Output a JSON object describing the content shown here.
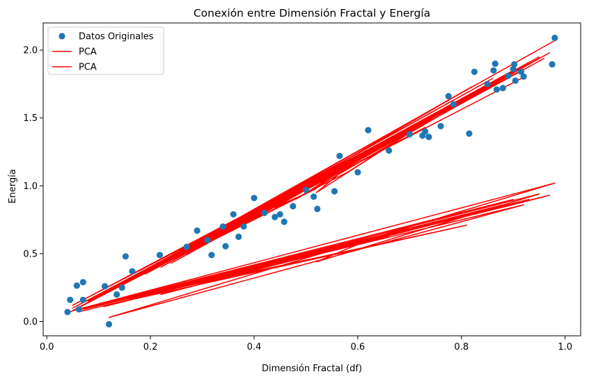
{
  "chart_data": {
    "type": "scatter",
    "title": "Conexión entre Dimensión Fractal y Energía",
    "xlabel": "Dimensión Fractal (df)",
    "ylabel": "Energía",
    "xlim": [
      -0.007,
      1.03
    ],
    "ylim": [
      -0.105,
      2.2
    ],
    "xticks": [
      "0.0",
      "0.2",
      "0.4",
      "0.6",
      "0.8",
      "1.0"
    ],
    "yticks": [
      "0.0",
      "0.5",
      "1.0",
      "1.5",
      "2.0"
    ],
    "grid": false,
    "legend_position": "top-left",
    "legend": [
      "Datos Originales",
      "PCA",
      "PCA"
    ],
    "colors": {
      "points": "#1f77b4",
      "pca": "#ff0000"
    },
    "series": [
      {
        "name": "Datos Originales",
        "kind": "scatter",
        "x": [
          0.04,
          0.045,
          0.058,
          0.062,
          0.07,
          0.07,
          0.112,
          0.12,
          0.135,
          0.145,
          0.152,
          0.165,
          0.218,
          0.27,
          0.29,
          0.31,
          0.318,
          0.34,
          0.345,
          0.36,
          0.37,
          0.38,
          0.4,
          0.42,
          0.44,
          0.45,
          0.458,
          0.475,
          0.5,
          0.515,
          0.522,
          0.555,
          0.565,
          0.6,
          0.62,
          0.66,
          0.7,
          0.725,
          0.73,
          0.737,
          0.76,
          0.775,
          0.785,
          0.815,
          0.825,
          0.85,
          0.862,
          0.865,
          0.868,
          0.88,
          0.89,
          0.9,
          0.902,
          0.904,
          0.915,
          0.92,
          0.975,
          0.98
        ],
        "y": [
          0.07,
          0.16,
          0.265,
          0.09,
          0.29,
          0.16,
          0.26,
          -0.02,
          0.2,
          0.25,
          0.48,
          0.37,
          0.49,
          0.55,
          0.67,
          0.6,
          0.49,
          0.7,
          0.555,
          0.79,
          0.625,
          0.7,
          0.91,
          0.8,
          0.77,
          0.79,
          0.735,
          0.85,
          0.97,
          0.92,
          0.83,
          0.96,
          1.22,
          1.1,
          1.41,
          1.26,
          1.38,
          1.37,
          1.4,
          1.36,
          1.44,
          1.66,
          1.6,
          1.385,
          1.84,
          1.75,
          1.85,
          1.9,
          1.71,
          1.72,
          1.81,
          1.86,
          1.895,
          1.775,
          1.84,
          1.805,
          1.895,
          2.09
        ]
      },
      {
        "name": "PCA",
        "kind": "line",
        "x": [
          0.04,
          0.92,
          0.07,
          0.98,
          0.06,
          0.86,
          0.12,
          0.9,
          0.05,
          0.73,
          0.15,
          0.82,
          0.22,
          0.9,
          0.05,
          0.62,
          0.29,
          0.95,
          0.11,
          0.76,
          0.37,
          0.88,
          0.16,
          0.7,
          0.05,
          0.56,
          0.24,
          0.97,
          0.08,
          0.66,
          0.44,
          0.52,
          0.3,
          0.85,
          0.12,
          0.6,
          0.52,
          0.81,
          0.58,
          0.33,
          0.9,
          0.2,
          0.78,
          0.4,
          0.92,
          0.13,
          0.7,
          0.27,
          0.83,
          0.1,
          0.66,
          0.48,
          0.93,
          0.19,
          0.62,
          0.35,
          0.88,
          0.07,
          0.5,
          0.74,
          0.28,
          0.96
        ],
        "y": [
          0.06,
          1.8,
          0.12,
          2.07,
          0.1,
          1.79,
          0.22,
          1.85,
          0.08,
          1.43,
          0.28,
          1.73,
          0.4,
          1.83,
          0.12,
          1.25,
          0.55,
          1.95,
          0.2,
          1.55,
          0.72,
          1.8,
          0.3,
          1.4,
          0.1,
          1.1,
          0.43,
          1.98,
          0.15,
          1.32,
          0.84,
          0.98,
          0.56,
          1.73,
          0.24,
          1.2,
          0.95,
          1.66,
          1.1,
          0.62,
          1.84,
          0.38,
          1.58,
          0.76,
          1.86,
          0.24,
          1.42,
          0.5,
          1.7,
          0.18,
          1.33,
          0.9,
          1.9,
          0.35,
          1.25,
          0.66,
          1.79,
          0.12,
          0.99,
          1.48,
          0.52,
          1.94
        ]
      },
      {
        "name": "PCA",
        "kind": "line",
        "x": [
          0.06,
          0.92,
          0.12,
          0.98,
          0.07,
          0.86,
          0.11,
          0.9,
          0.05,
          0.81,
          0.15,
          0.82,
          0.22,
          0.9,
          0.08,
          0.62,
          0.52,
          0.95,
          0.11,
          0.76,
          0.37,
          0.88,
          0.16,
          0.7,
          0.06,
          0.56,
          0.24,
          0.97,
          0.08,
          0.66,
          0.44,
          0.52,
          0.3,
          0.85,
          0.12,
          0.6,
          0.52,
          0.81,
          0.58,
          0.33,
          0.9,
          0.2,
          0.78,
          0.4,
          0.92,
          0.13,
          0.7,
          0.27,
          0.83,
          0.1,
          0.66,
          0.48,
          0.93,
          0.19,
          0.62,
          0.35,
          0.88,
          0.07,
          0.5,
          0.74,
          0.28,
          0.96
        ],
        "y": [
          0.07,
          0.86,
          0.03,
          1.02,
          0.1,
          0.83,
          0.11,
          0.9,
          0.08,
          0.71,
          0.15,
          0.8,
          0.2,
          0.87,
          0.1,
          0.6,
          0.44,
          0.94,
          0.13,
          0.74,
          0.36,
          0.86,
          0.17,
          0.68,
          0.09,
          0.54,
          0.24,
          0.93,
          0.1,
          0.64,
          0.42,
          0.5,
          0.3,
          0.82,
          0.14,
          0.58,
          0.5,
          0.78,
          0.56,
          0.32,
          0.87,
          0.21,
          0.75,
          0.39,
          0.88,
          0.15,
          0.67,
          0.27,
          0.8,
          0.12,
          0.63,
          0.46,
          0.9,
          0.2,
          0.6,
          0.34,
          0.85,
          0.09,
          0.48,
          0.71,
          0.28,
          0.92
        ]
      }
    ]
  }
}
